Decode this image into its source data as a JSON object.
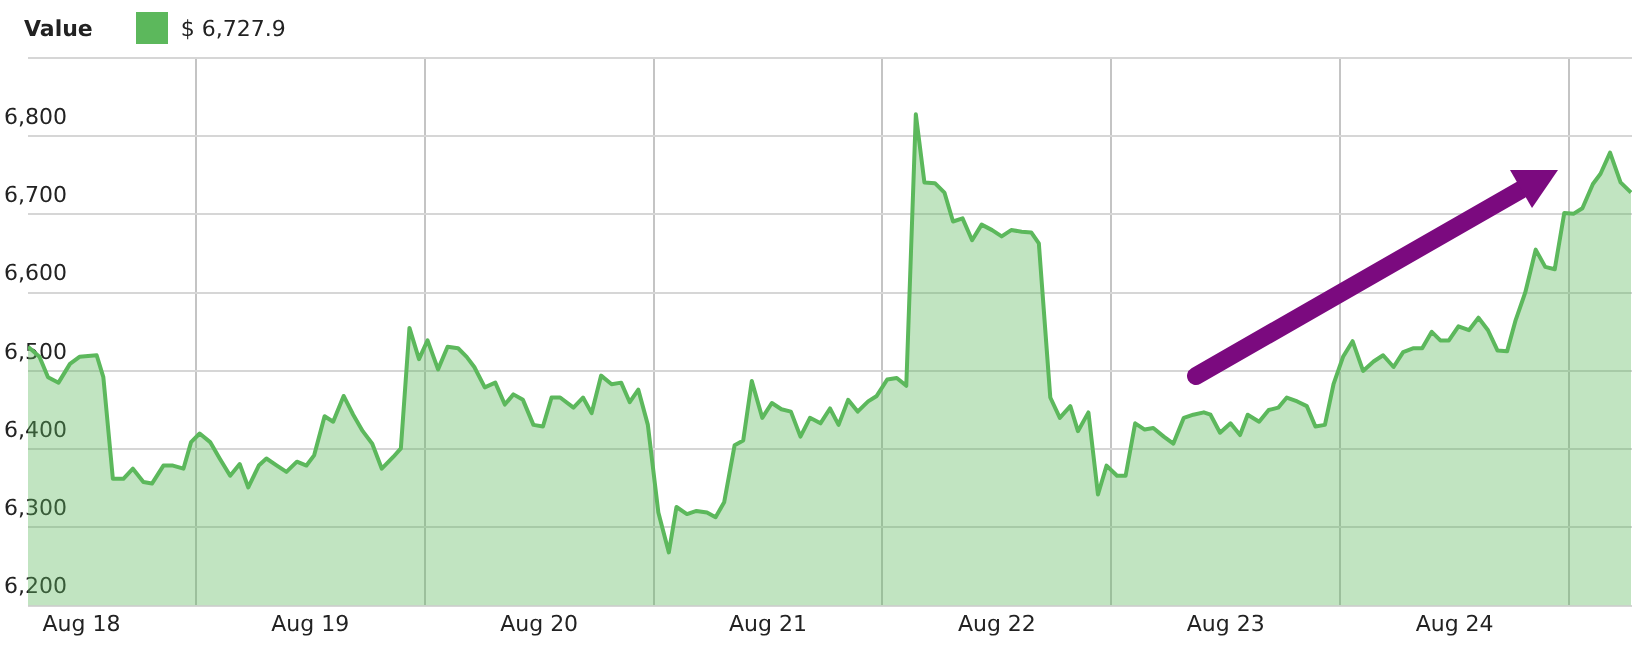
{
  "chart_data": {
    "type": "area",
    "legend_title": "Value",
    "legend": "top left",
    "grid": true,
    "marker": "none",
    "xlim": [
      "--08-18T06:24",
      "--08-25T06:36"
    ],
    "xticks": [
      {
        "value": "--08-18T12:00",
        "label": "Aug 18"
      },
      {
        "value": "--08-19T00:00",
        "label": null
      },
      {
        "value": "--08-19T12:00",
        "label": "Aug 19"
      },
      {
        "value": "--08-20T00:00",
        "label": null
      },
      {
        "value": "--08-20T12:00",
        "label": "Aug 20"
      },
      {
        "value": "--08-21T00:00",
        "label": null
      },
      {
        "value": "--08-21T12:00",
        "label": "Aug 21"
      },
      {
        "value": "--08-22T00:00",
        "label": null
      },
      {
        "value": "--08-22T12:00",
        "label": "Aug 22"
      },
      {
        "value": "--08-23T00:00",
        "label": null
      },
      {
        "value": "--08-23T12:00",
        "label": "Aug 23"
      },
      {
        "value": "--08-24T00:00",
        "label": null
      },
      {
        "value": "--08-24T12:00",
        "label": "Aug 24"
      },
      {
        "value": "--08-25T00:00",
        "label": null
      }
    ],
    "ylim": [
      6200,
      6900
    ],
    "yticks": [
      {
        "value": 6200,
        "label": "6,200"
      },
      {
        "value": 6300,
        "label": "6,300"
      },
      {
        "value": 6400,
        "label": "6,400"
      },
      {
        "value": 6500,
        "label": "6,500"
      },
      {
        "value": 6600,
        "label": "6,600"
      },
      {
        "value": 6700,
        "label": "6,700"
      },
      {
        "value": 6800,
        "label": "6,800"
      },
      {
        "value": 6900,
        "label": null
      }
    ],
    "series": [
      {
        "name": "$ 6,727.9",
        "color": "#5cb85c",
        "x": [
          "--08-18T06:24",
          "--08-18T07:36",
          "--08-18T08:30",
          "--08-18T09:36",
          "--08-18T10:48",
          "--08-18T11:48",
          "--08-18T13:36",
          "--08-18T14:18",
          "--08-18T15:18",
          "--08-18T16:24",
          "--08-18T17:24",
          "--08-18T18:30",
          "--08-18T19:24",
          "--08-18T20:36",
          "--08-18T21:36",
          "--08-18T22:42",
          "--08-18T23:30",
          "--08-19T00:24",
          "--08-19T01:30",
          "--08-19T02:30",
          "--08-19T03:36",
          "--08-19T04:36",
          "--08-19T05:30",
          "--08-19T06:36",
          "--08-19T07:24",
          "--08-19T08:30",
          "--08-19T09:30",
          "--08-19T10:36",
          "--08-19T11:36",
          "--08-19T12:24",
          "--08-19T13:30",
          "--08-19T14:24",
          "--08-19T15:30",
          "--08-19T16:30",
          "--08-19T17:30",
          "--08-19T18:30",
          "--08-19T19:30",
          "--08-19T20:42",
          "--08-19T21:30",
          "--08-19T22:24",
          "--08-19T23:24",
          "--08-20T00:18",
          "--08-20T01:24",
          "--08-20T02:24",
          "--08-20T03:30",
          "--08-20T04:24",
          "--08-20T05:12",
          "--08-20T06:18",
          "--08-20T07:24",
          "--08-20T08:24",
          "--08-20T09:18",
          "--08-20T10:18",
          "--08-20T11:24",
          "--08-20T12:24",
          "--08-20T13:18",
          "--08-20T14:12",
          "--08-20T15:36",
          "--08-20T16:36",
          "--08-20T17:30",
          "--08-20T18:30",
          "--08-20T19:36",
          "--08-20T20:36",
          "--08-20T21:30",
          "--08-20T22:24",
          "--08-20T23:24",
          "--08-21T00:30",
          "--08-21T01:36",
          "--08-21T02:24",
          "--08-21T03:30",
          "--08-21T04:30",
          "--08-21T05:36",
          "--08-21T06:30",
          "--08-21T07:24",
          "--08-21T08:30",
          "--08-21T09:24",
          "--08-21T10:18",
          "--08-21T11:24",
          "--08-21T12:24",
          "--08-21T13:24",
          "--08-21T14:24",
          "--08-21T15:24",
          "--08-21T16:24",
          "--08-21T17:30",
          "--08-21T18:30",
          "--08-21T19:24",
          "--08-21T20:24",
          "--08-21T21:24",
          "--08-21T22:30",
          "--08-21T23:24",
          "--08-22T00:30",
          "--08-22T01:30",
          "--08-22T02:30",
          "--08-22T03:30",
          "--08-22T04:24",
          "--08-22T05:30",
          "--08-22T06:30",
          "--08-22T07:24",
          "--08-22T08:24",
          "--08-22T09:24",
          "--08-22T10:24",
          "--08-22T11:30",
          "--08-22T12:30",
          "--08-22T13:30",
          "--08-22T14:36",
          "--08-22T15:36",
          "--08-22T16:24",
          "--08-22T17:36",
          "--08-22T18:36",
          "--08-22T19:42",
          "--08-22T20:30",
          "--08-22T21:36",
          "--08-22T22:36",
          "--08-22T23:30",
          "--08-23T00:36",
          "--08-23T01:30",
          "--08-23T02:30",
          "--08-23T03:30",
          "--08-23T04:24",
          "--08-23T05:30",
          "--08-23T06:30",
          "--08-23T07:36",
          "--08-23T08:36",
          "--08-23T09:42",
          "--08-23T10:24",
          "--08-23T11:24",
          "--08-23T12:30",
          "--08-23T13:30",
          "--08-23T14:18",
          "--08-23T15:30",
          "--08-23T16:30",
          "--08-23T17:30",
          "--08-23T18:24",
          "--08-23T19:30",
          "--08-23T20:30",
          "--08-23T21:24",
          "--08-23T22:24",
          "--08-23T23:18",
          "--08-24T00:18",
          "--08-24T01:18",
          "--08-24T02:24",
          "--08-24T03:30",
          "--08-24T04:30",
          "--08-24T05:36",
          "--08-24T06:36",
          "--08-24T07:42",
          "--08-24T08:36",
          "--08-24T09:36",
          "--08-24T10:30",
          "--08-24T11:24",
          "--08-24T12:24",
          "--08-24T13:30",
          "--08-24T14:30",
          "--08-24T15:30",
          "--08-24T16:30",
          "--08-24T17:30",
          "--08-24T18:24",
          "--08-24T19:24",
          "--08-24T20:30",
          "--08-24T21:30",
          "--08-24T22:30",
          "--08-24T23:30",
          "--08-25T00:30",
          "--08-25T01:24",
          "--08-25T02:30",
          "--08-25T03:18",
          "--08-25T04:18",
          "--08-25T05:24",
          "--08-25T06:30"
        ],
        "values": [
          6531,
          6518,
          6492,
          6485,
          6509,
          6518,
          6520,
          6492,
          6362,
          6362,
          6375,
          6358,
          6356,
          6379,
          6379,
          6375,
          6409,
          6420,
          6409,
          6388,
          6366,
          6381,
          6351,
          6379,
          6388,
          6379,
          6371,
          6384,
          6379,
          6392,
          6442,
          6435,
          6468,
          6444,
          6423,
          6407,
          6375,
          6390,
          6401,
          6555,
          6515,
          6539,
          6502,
          6531,
          6529,
          6518,
          6505,
          6479,
          6485,
          6457,
          6470,
          6463,
          6431,
          6429,
          6466,
          6466,
          6453,
          6466,
          6446,
          6494,
          6483,
          6485,
          6460,
          6476,
          6431,
          6319,
          6268,
          6326,
          6317,
          6321,
          6319,
          6313,
          6332,
          6405,
          6411,
          6487,
          6440,
          6459,
          6451,
          6448,
          6416,
          6440,
          6433,
          6452,
          6431,
          6463,
          6448,
          6461,
          6468,
          6489,
          6491,
          6481,
          6828,
          6741,
          6740,
          6728,
          6691,
          6695,
          6667,
          6687,
          6680,
          6672,
          6680,
          6678,
          6677,
          6663,
          6466,
          6440,
          6455,
          6423,
          6447,
          6342,
          6379,
          6366,
          6366,
          6433,
          6425,
          6427,
          6416,
          6407,
          6440,
          6444,
          6447,
          6444,
          6421,
          6433,
          6418,
          6444,
          6435,
          6450,
          6453,
          6466,
          6461,
          6455,
          6429,
          6431,
          6483,
          6518,
          6538,
          6500,
          6512,
          6520,
          6505,
          6524,
          6529,
          6529,
          6550,
          6539,
          6539,
          6557,
          6552,
          6568,
          6552,
          6526,
          6525,
          6565,
          6600,
          6655,
          6633,
          6630,
          6702,
          6701,
          6708,
          6739,
          6752,
          6779,
          6741,
          6728
        ]
      }
    ]
  }
}
